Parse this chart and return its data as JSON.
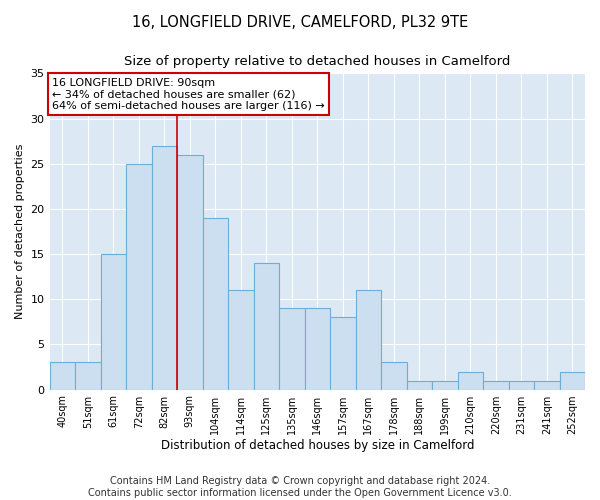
{
  "title": "16, LONGFIELD DRIVE, CAMELFORD, PL32 9TE",
  "subtitle": "Size of property relative to detached houses in Camelford",
  "xlabel": "Distribution of detached houses by size in Camelford",
  "ylabel": "Number of detached properties",
  "categories": [
    "40sqm",
    "51sqm",
    "61sqm",
    "72sqm",
    "82sqm",
    "93sqm",
    "104sqm",
    "114sqm",
    "125sqm",
    "135sqm",
    "146sqm",
    "157sqm",
    "167sqm",
    "178sqm",
    "188sqm",
    "199sqm",
    "210sqm",
    "220sqm",
    "231sqm",
    "241sqm",
    "252sqm"
  ],
  "values": [
    3,
    3,
    15,
    25,
    27,
    26,
    19,
    11,
    14,
    9,
    9,
    8,
    11,
    3,
    1,
    1,
    2,
    1,
    1,
    1,
    2
  ],
  "bar_color": "#ccdff0",
  "bar_edge_color": "#6baed6",
  "vline_x_idx": 4.5,
  "vline_color": "#cc0000",
  "annotation_text": "16 LONGFIELD DRIVE: 90sqm\n← 34% of detached houses are smaller (62)\n64% of semi-detached houses are larger (116) →",
  "annotation_box_color": "#ffffff",
  "annotation_box_edge": "#cc0000",
  "ylim": [
    0,
    35
  ],
  "yticks": [
    0,
    5,
    10,
    15,
    20,
    25,
    30,
    35
  ],
  "fig_bg_color": "#ffffff",
  "plot_bg_color": "#dce9f5",
  "grid_color": "#ffffff",
  "footer": "Contains HM Land Registry data © Crown copyright and database right 2024.\nContains public sector information licensed under the Open Government Licence v3.0.",
  "title_fontsize": 10.5,
  "subtitle_fontsize": 9.5,
  "xlabel_fontsize": 8.5,
  "ylabel_fontsize": 8,
  "annotation_fontsize": 8,
  "footer_fontsize": 7
}
